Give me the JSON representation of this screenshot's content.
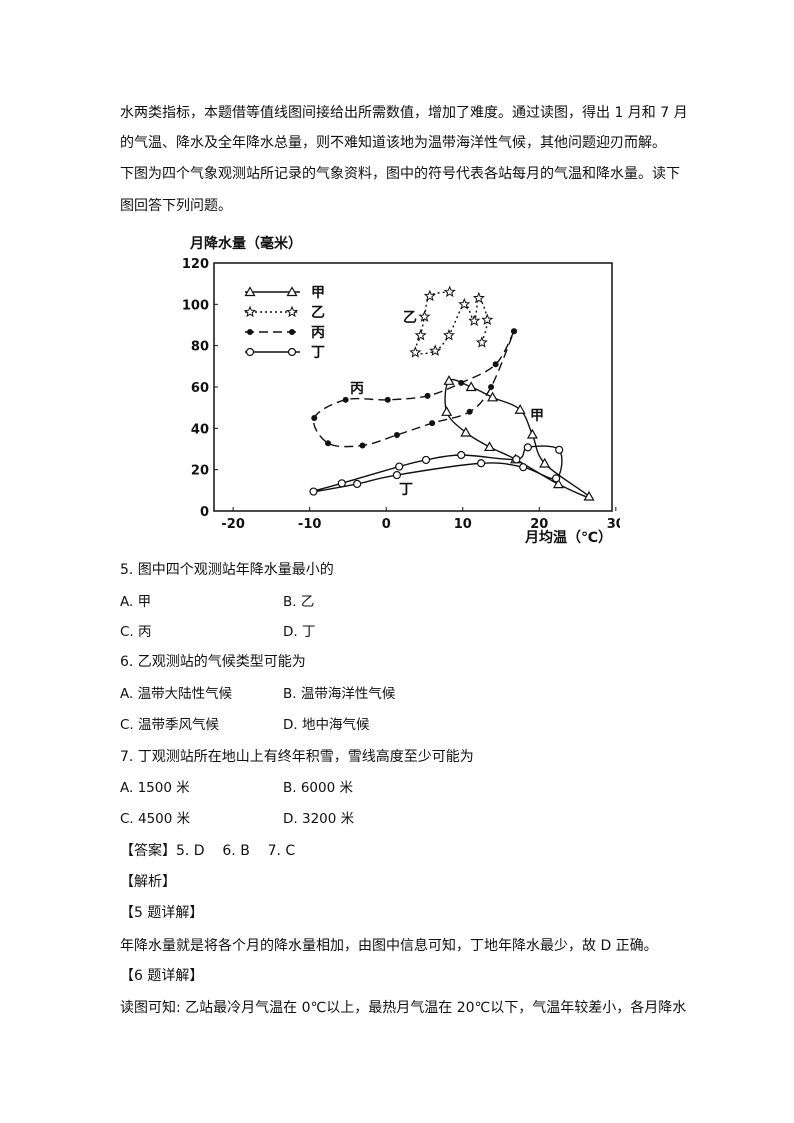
{
  "intro": [
    "水两类指标，本题借等值线图间接给出所需数值，增加了难度。通过读图，得出 1 月和 7 月",
    "的气温、降水及全年降水总量，则不难知道该地为温带海洋性气候，其他问题迎刃而解。",
    "下图为四个气象观测站所记录的气象资料，图中的符号代表各站每月的气温和降水量。读下",
    "图回答下列问题。"
  ],
  "chart_data": {
    "type": "line",
    "title": "",
    "ylabel": "月降水量（毫米）",
    "xlabel": "月均温（℃）",
    "xlim": [
      -22.5,
      29.5
    ],
    "ylim": [
      0,
      120
    ],
    "xticks": [
      "-20",
      "-10",
      "0",
      "10",
      "20",
      "30"
    ],
    "yticks": [
      "0",
      "20",
      "40",
      "60",
      "80",
      "100",
      "120"
    ],
    "legend_position": "top-left",
    "series": [
      {
        "name": "甲",
        "marker": "triangle-open",
        "style": "solid",
        "closed": true,
        "points": [
          [
            8.2,
            63
          ],
          [
            11.1,
            60
          ],
          [
            13.9,
            55
          ],
          [
            17.5,
            49
          ],
          [
            19.1,
            37
          ],
          [
            20.7,
            23
          ],
          [
            26.5,
            7
          ],
          [
            22.5,
            13
          ],
          [
            16.9,
            25
          ],
          [
            13.5,
            31
          ],
          [
            10.4,
            38
          ],
          [
            7.9,
            48
          ]
        ]
      },
      {
        "name": "乙",
        "marker": "star-open",
        "style": "dotted",
        "closed": false,
        "points": [
          [
            12.5,
            81.5
          ],
          [
            13.2,
            92.5
          ],
          [
            12.1,
            103
          ],
          [
            11.5,
            92
          ],
          [
            10.2,
            100
          ],
          [
            8.2,
            85
          ],
          [
            6.4,
            77.5
          ],
          [
            3.8,
            76.7
          ],
          [
            4.5,
            85
          ],
          [
            5.0,
            94
          ],
          [
            5.7,
            104
          ],
          [
            8.3,
            106
          ]
        ]
      },
      {
        "name": "丙",
        "marker": "dot-filled",
        "style": "dashed",
        "closed": false,
        "points": [
          [
            16.7,
            87
          ],
          [
            14.3,
            71
          ],
          [
            9.8,
            62
          ],
          [
            5.4,
            55.7
          ],
          [
            0.2,
            53.8
          ],
          [
            -5.3,
            53.8
          ],
          [
            -9.4,
            45
          ],
          [
            -7.6,
            32.8
          ],
          [
            -3.1,
            31.7
          ],
          [
            1.4,
            36.8
          ],
          [
            6.0,
            42.5
          ],
          [
            10.9,
            48
          ],
          [
            13.7,
            60
          ],
          [
            16.7,
            87
          ]
        ]
      },
      {
        "name": "丁",
        "marker": "circle-open",
        "style": "solid",
        "closed": true,
        "points": [
          [
            -9.5,
            9.4
          ],
          [
            -5.8,
            13.4
          ],
          [
            1.7,
            21.5
          ],
          [
            5.2,
            24.7
          ],
          [
            9.8,
            27.1
          ],
          [
            17.0,
            25
          ],
          [
            18.5,
            30.8
          ],
          [
            22.6,
            29.6
          ],
          [
            22.2,
            15.8
          ],
          [
            17.9,
            21.2
          ],
          [
            12.4,
            23.1
          ],
          [
            1.4,
            17.4
          ],
          [
            -3.8,
            13.1
          ]
        ]
      }
    ]
  },
  "questions": [
    {
      "stem": "5. 图中四个观测站年降水量最小的",
      "options": [
        "A. 甲",
        "B. 乙",
        "C. 丙",
        "D. 丁"
      ]
    },
    {
      "stem": "6. 乙观测站的气候类型可能为",
      "options": [
        "A. 温带大陆性气候",
        "B. 温带海洋性气候",
        "C. 温带季风气候",
        "D. 地中海气候"
      ]
    },
    {
      "stem": "7. 丁观测站所在地山上有终年积雪，雪线高度至少可能为",
      "options": [
        "A. 1500 米",
        "B. 6000 米",
        "C. 4500 米",
        "D. 3200 米"
      ]
    }
  ],
  "answer": "【答案】5. D    6. B    7. C",
  "analysis_heading": "【解析】",
  "q5_heading": "【5 题详解】",
  "q5_text": "年降水量就是将各个月的降水量相加，由图中信息可知，丁地年降水最少，故 D 正确。",
  "q6_heading": "【6 题详解】",
  "q6_text": "读图可知: 乙站最冷月气温在 0℃以上，最热月气温在 20℃以下，气温年较差小，各月降水"
}
